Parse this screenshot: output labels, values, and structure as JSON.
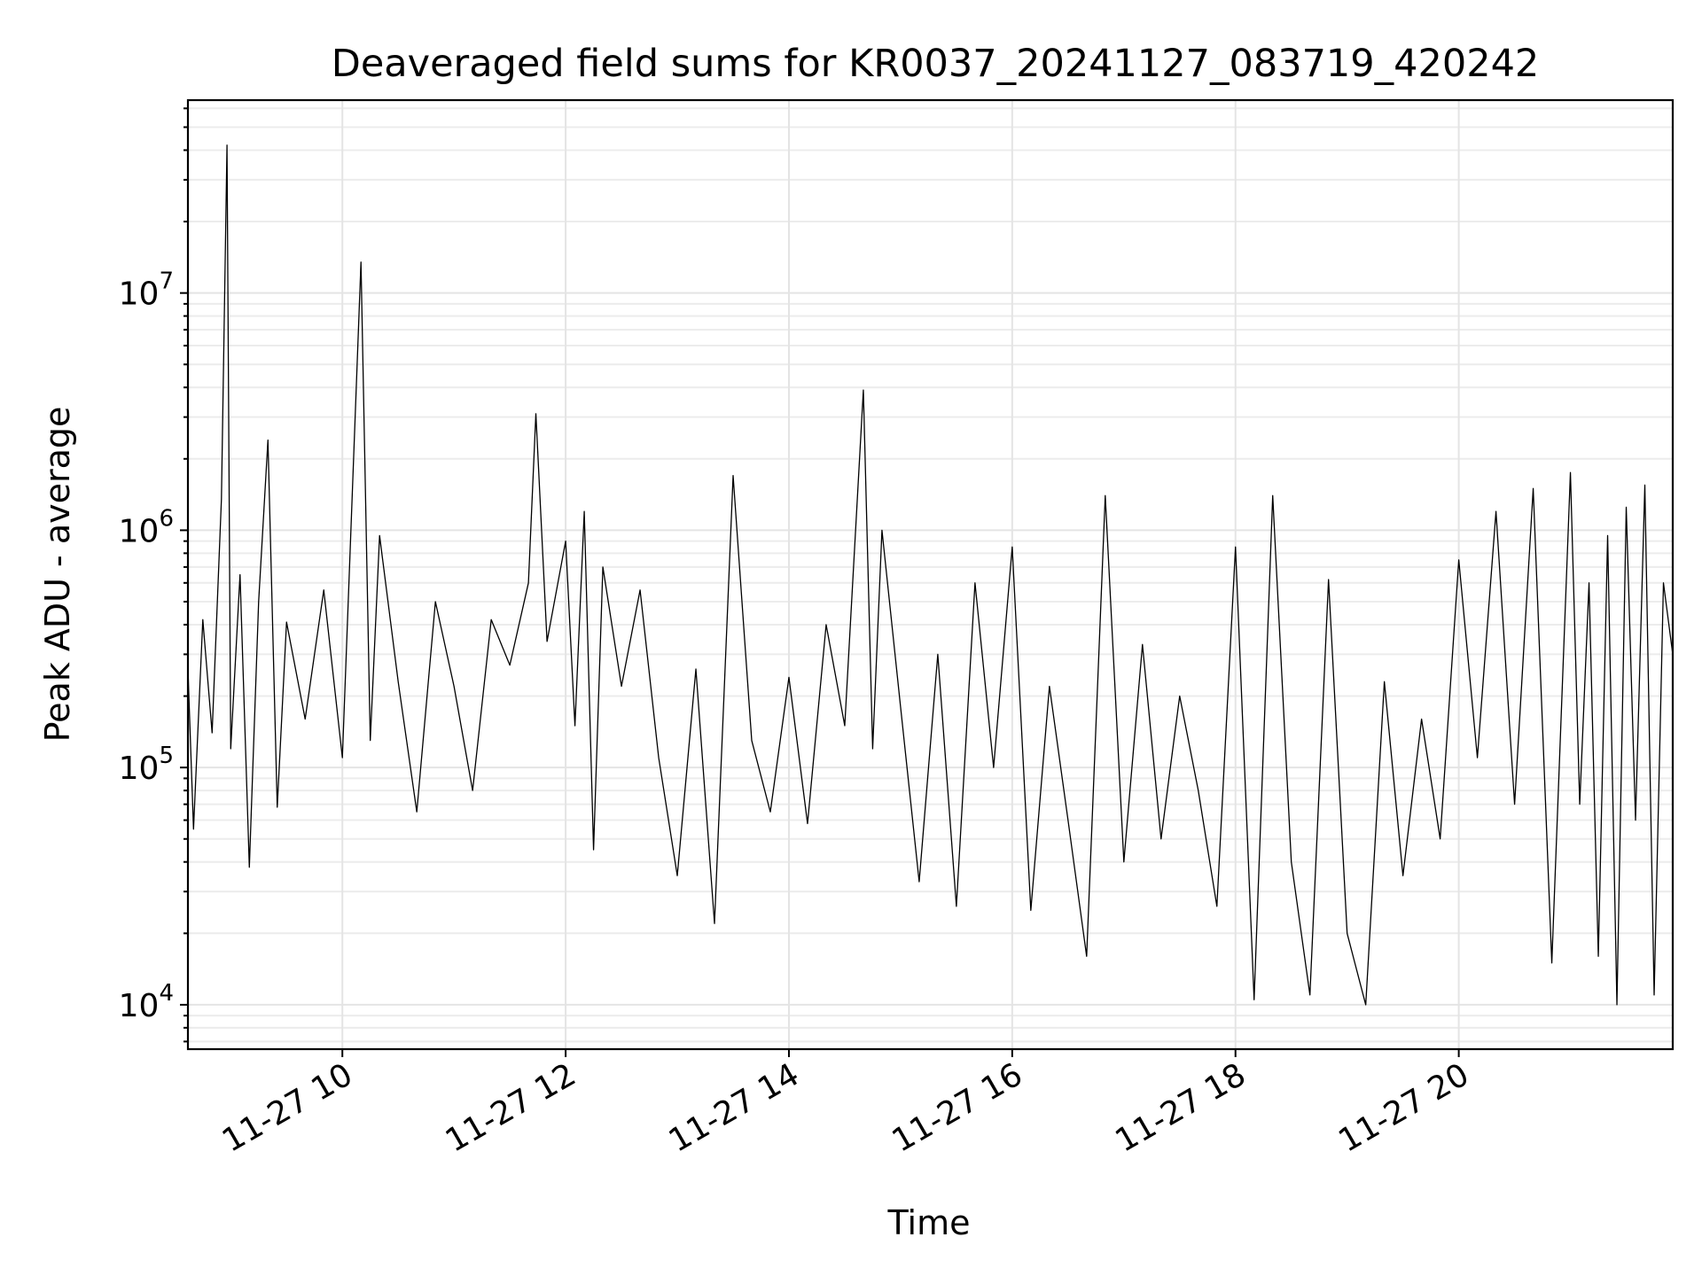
{
  "chart_data": {
    "type": "line",
    "title": "Deaveraged field sums for KR0037_20241127_083719_420242",
    "xlabel": "Time",
    "ylabel": "Peak ADU - average",
    "x_range": [
      "2024-11-27 08:37",
      "2024-11-27 21:55"
    ],
    "x_ticks": [
      {
        "time": "2024-11-27 10:00",
        "label": "11-27 10"
      },
      {
        "time": "2024-11-27 12:00",
        "label": "11-27 12"
      },
      {
        "time": "2024-11-27 14:00",
        "label": "11-27 14"
      },
      {
        "time": "2024-11-27 16:00",
        "label": "11-27 16"
      },
      {
        "time": "2024-11-27 18:00",
        "label": "11-27 18"
      },
      {
        "time": "2024-11-27 20:00",
        "label": "11-27 20"
      }
    ],
    "y_scale": "log",
    "ylim": [
      6500,
      65000000
    ],
    "y_ticks": [
      {
        "value": 10000,
        "base": "10",
        "exp": "4"
      },
      {
        "value": 100000,
        "base": "10",
        "exp": "5"
      },
      {
        "value": 1000000,
        "base": "10",
        "exp": "6"
      },
      {
        "value": 10000000,
        "base": "10",
        "exp": "7"
      }
    ],
    "grid": true,
    "series": [
      {
        "color": "#000000",
        "points": [
          [
            "2024-11-27 08:37",
            260000
          ],
          [
            "2024-11-27 08:40",
            55000
          ],
          [
            "2024-11-27 08:45",
            420000
          ],
          [
            "2024-11-27 08:50",
            140000
          ],
          [
            "2024-11-27 08:55",
            1350000
          ],
          [
            "2024-11-27 08:58",
            42000000
          ],
          [
            "2024-11-27 09:00",
            120000
          ],
          [
            "2024-11-27 09:05",
            650000
          ],
          [
            "2024-11-27 09:10",
            38000
          ],
          [
            "2024-11-27 09:15",
            500000
          ],
          [
            "2024-11-27 09:20",
            2400000
          ],
          [
            "2024-11-27 09:25",
            68000
          ],
          [
            "2024-11-27 09:30",
            410000
          ],
          [
            "2024-11-27 09:40",
            160000
          ],
          [
            "2024-11-27 09:50",
            560000
          ],
          [
            "2024-11-27 10:00",
            110000
          ],
          [
            "2024-11-27 10:10",
            13500000
          ],
          [
            "2024-11-27 10:15",
            130000
          ],
          [
            "2024-11-27 10:20",
            950000
          ],
          [
            "2024-11-27 10:30",
            230000
          ],
          [
            "2024-11-27 10:40",
            65000
          ],
          [
            "2024-11-27 10:50",
            500000
          ],
          [
            "2024-11-27 11:00",
            220000
          ],
          [
            "2024-11-27 11:10",
            80000
          ],
          [
            "2024-11-27 11:20",
            420000
          ],
          [
            "2024-11-27 11:30",
            270000
          ],
          [
            "2024-11-27 11:40",
            600000
          ],
          [
            "2024-11-27 11:44",
            3100000
          ],
          [
            "2024-11-27 11:50",
            340000
          ],
          [
            "2024-11-27 12:00",
            900000
          ],
          [
            "2024-11-27 12:05",
            150000
          ],
          [
            "2024-11-27 12:10",
            1200000
          ],
          [
            "2024-11-27 12:15",
            45000
          ],
          [
            "2024-11-27 12:20",
            700000
          ],
          [
            "2024-11-27 12:30",
            220000
          ],
          [
            "2024-11-27 12:40",
            560000
          ],
          [
            "2024-11-27 12:50",
            110000
          ],
          [
            "2024-11-27 13:00",
            35000
          ],
          [
            "2024-11-27 13:10",
            260000
          ],
          [
            "2024-11-27 13:20",
            22000
          ],
          [
            "2024-11-27 13:30",
            1700000
          ],
          [
            "2024-11-27 13:40",
            130000
          ],
          [
            "2024-11-27 13:50",
            65000
          ],
          [
            "2024-11-27 14:00",
            240000
          ],
          [
            "2024-11-27 14:10",
            58000
          ],
          [
            "2024-11-27 14:20",
            400000
          ],
          [
            "2024-11-27 14:30",
            150000
          ],
          [
            "2024-11-27 14:40",
            3900000
          ],
          [
            "2024-11-27 14:45",
            120000
          ],
          [
            "2024-11-27 14:50",
            1000000
          ],
          [
            "2024-11-27 15:00",
            180000
          ],
          [
            "2024-11-27 15:10",
            33000
          ],
          [
            "2024-11-27 15:20",
            300000
          ],
          [
            "2024-11-27 15:30",
            26000
          ],
          [
            "2024-11-27 15:40",
            600000
          ],
          [
            "2024-11-27 15:50",
            100000
          ],
          [
            "2024-11-27 16:00",
            850000
          ],
          [
            "2024-11-27 16:10",
            25000
          ],
          [
            "2024-11-27 16:20",
            220000
          ],
          [
            "2024-11-27 16:30",
            60000
          ],
          [
            "2024-11-27 16:40",
            16000
          ],
          [
            "2024-11-27 16:50",
            1400000
          ],
          [
            "2024-11-27 17:00",
            40000
          ],
          [
            "2024-11-27 17:10",
            330000
          ],
          [
            "2024-11-27 17:20",
            50000
          ],
          [
            "2024-11-27 17:30",
            200000
          ],
          [
            "2024-11-27 17:40",
            80000
          ],
          [
            "2024-11-27 17:50",
            26000
          ],
          [
            "2024-11-27 18:00",
            850000
          ],
          [
            "2024-11-27 18:10",
            10500
          ],
          [
            "2024-11-27 18:20",
            1400000
          ],
          [
            "2024-11-27 18:30",
            40000
          ],
          [
            "2024-11-27 18:40",
            11000
          ],
          [
            "2024-11-27 18:50",
            620000
          ],
          [
            "2024-11-27 19:00",
            20000
          ],
          [
            "2024-11-27 19:10",
            10000
          ],
          [
            "2024-11-27 19:20",
            230000
          ],
          [
            "2024-11-27 19:30",
            35000
          ],
          [
            "2024-11-27 19:40",
            160000
          ],
          [
            "2024-11-27 19:50",
            50000
          ],
          [
            "2024-11-27 20:00",
            750000
          ],
          [
            "2024-11-27 20:10",
            110000
          ],
          [
            "2024-11-27 20:20",
            1200000
          ],
          [
            "2024-11-27 20:30",
            70000
          ],
          [
            "2024-11-27 20:40",
            1500000
          ],
          [
            "2024-11-27 20:50",
            15000
          ],
          [
            "2024-11-27 21:00",
            1750000
          ],
          [
            "2024-11-27 21:05",
            70000
          ],
          [
            "2024-11-27 21:10",
            600000
          ],
          [
            "2024-11-27 21:15",
            16000
          ],
          [
            "2024-11-27 21:20",
            950000
          ],
          [
            "2024-11-27 21:25",
            10000
          ],
          [
            "2024-11-27 21:30",
            1250000
          ],
          [
            "2024-11-27 21:35",
            60000
          ],
          [
            "2024-11-27 21:40",
            1550000
          ],
          [
            "2024-11-27 21:45",
            11000
          ],
          [
            "2024-11-27 21:50",
            600000
          ],
          [
            "2024-11-27 21:55",
            300000
          ]
        ]
      }
    ]
  }
}
